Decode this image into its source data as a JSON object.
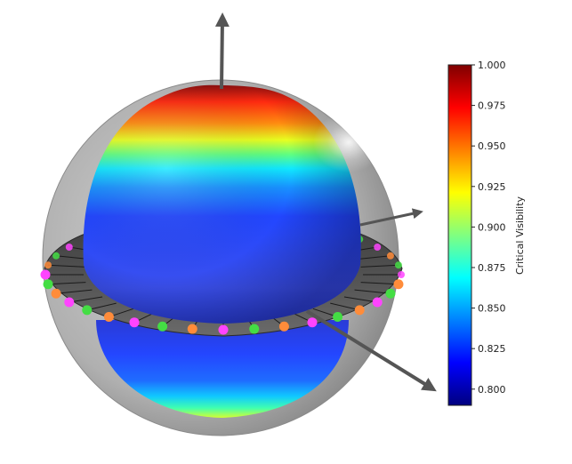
{
  "figure": {
    "colorbar": {
      "label": "Critical Visibility",
      "range": [
        0.79,
        1.0
      ],
      "ticks": [
        "1.000",
        "0.975",
        "0.950",
        "0.925",
        "0.900",
        "0.875",
        "0.850",
        "0.825",
        "0.800"
      ],
      "colormap": [
        "#00007f",
        "#0000ff",
        "#0080ff",
        "#00ffff",
        "#80ff80",
        "#ffff00",
        "#ff8000",
        "#ff0000",
        "#7f0000"
      ]
    },
    "scene": {
      "outer_sphere_color": "#9a9a9a",
      "ring_color": "#555555",
      "arrow_color": "#555555",
      "marker_colors": [
        "#ff44ff",
        "#ff8c3a",
        "#44dd44"
      ]
    }
  }
}
